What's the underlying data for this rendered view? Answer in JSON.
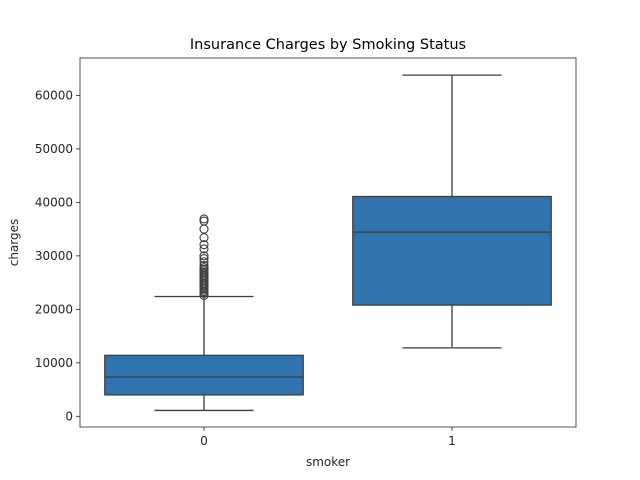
{
  "chart_data": {
    "type": "box",
    "title": "Insurance Charges by Smoking Status",
    "xlabel": "smoker",
    "ylabel": "charges",
    "categories": [
      "0",
      "1"
    ],
    "ylim": [
      -2000,
      67000
    ],
    "yticks": [
      0,
      10000,
      20000,
      30000,
      40000,
      50000,
      60000
    ],
    "ytick_labels": [
      "0",
      "10000",
      "20000",
      "30000",
      "40000",
      "50000",
      "60000"
    ],
    "grid": false,
    "box_color": "#2f74ae",
    "line_color": "#3d3d3d",
    "boxes": [
      {
        "category": "0",
        "whisker_low": 1100,
        "q1": 4000,
        "median": 7350,
        "q3": 11400,
        "whisker_high": 22400,
        "outliers": [
          22600,
          23000,
          23300,
          23600,
          23900,
          24200,
          24500,
          24800,
          25100,
          25400,
          25700,
          26000,
          26300,
          26600,
          26900,
          27200,
          27500,
          27800,
          28200,
          28900,
          29500,
          30000,
          31300,
          32100,
          33400,
          35000,
          36500,
          36900
        ]
      },
      {
        "category": "1",
        "whisker_low": 12800,
        "q1": 20800,
        "median": 34450,
        "q3": 41100,
        "whisker_high": 63800,
        "outliers": []
      }
    ]
  }
}
